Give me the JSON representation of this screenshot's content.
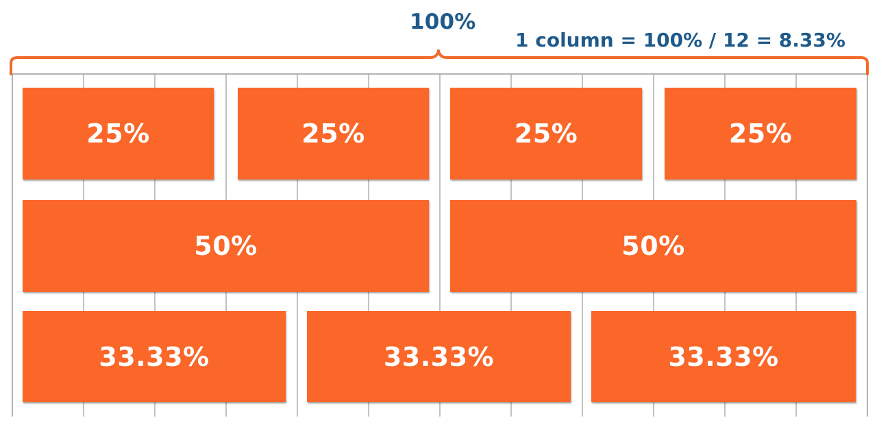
{
  "header": {
    "total_label": "100%",
    "formula_label": "1 column = 100% / 12 = 8.33%"
  },
  "grid": {
    "columns": 12,
    "colors": {
      "box": "#fb6629",
      "brace": "#f26a2a",
      "title": "#1f5a8a",
      "gridline": "#9a9a9a"
    }
  },
  "rows": [
    {
      "name": "row-quarters",
      "cells": [
        {
          "label": "25%",
          "span": 3
        },
        {
          "label": "25%",
          "span": 3
        },
        {
          "label": "25%",
          "span": 3
        },
        {
          "label": "25%",
          "span": 3
        }
      ]
    },
    {
      "name": "row-halves",
      "cells": [
        {
          "label": "50%",
          "span": 6
        },
        {
          "label": "50%",
          "span": 6
        }
      ]
    },
    {
      "name": "row-thirds",
      "cells": [
        {
          "label": "33.33%",
          "span": 4
        },
        {
          "label": "33.33%",
          "span": 4
        },
        {
          "label": "33.33%",
          "span": 4
        }
      ]
    }
  ]
}
